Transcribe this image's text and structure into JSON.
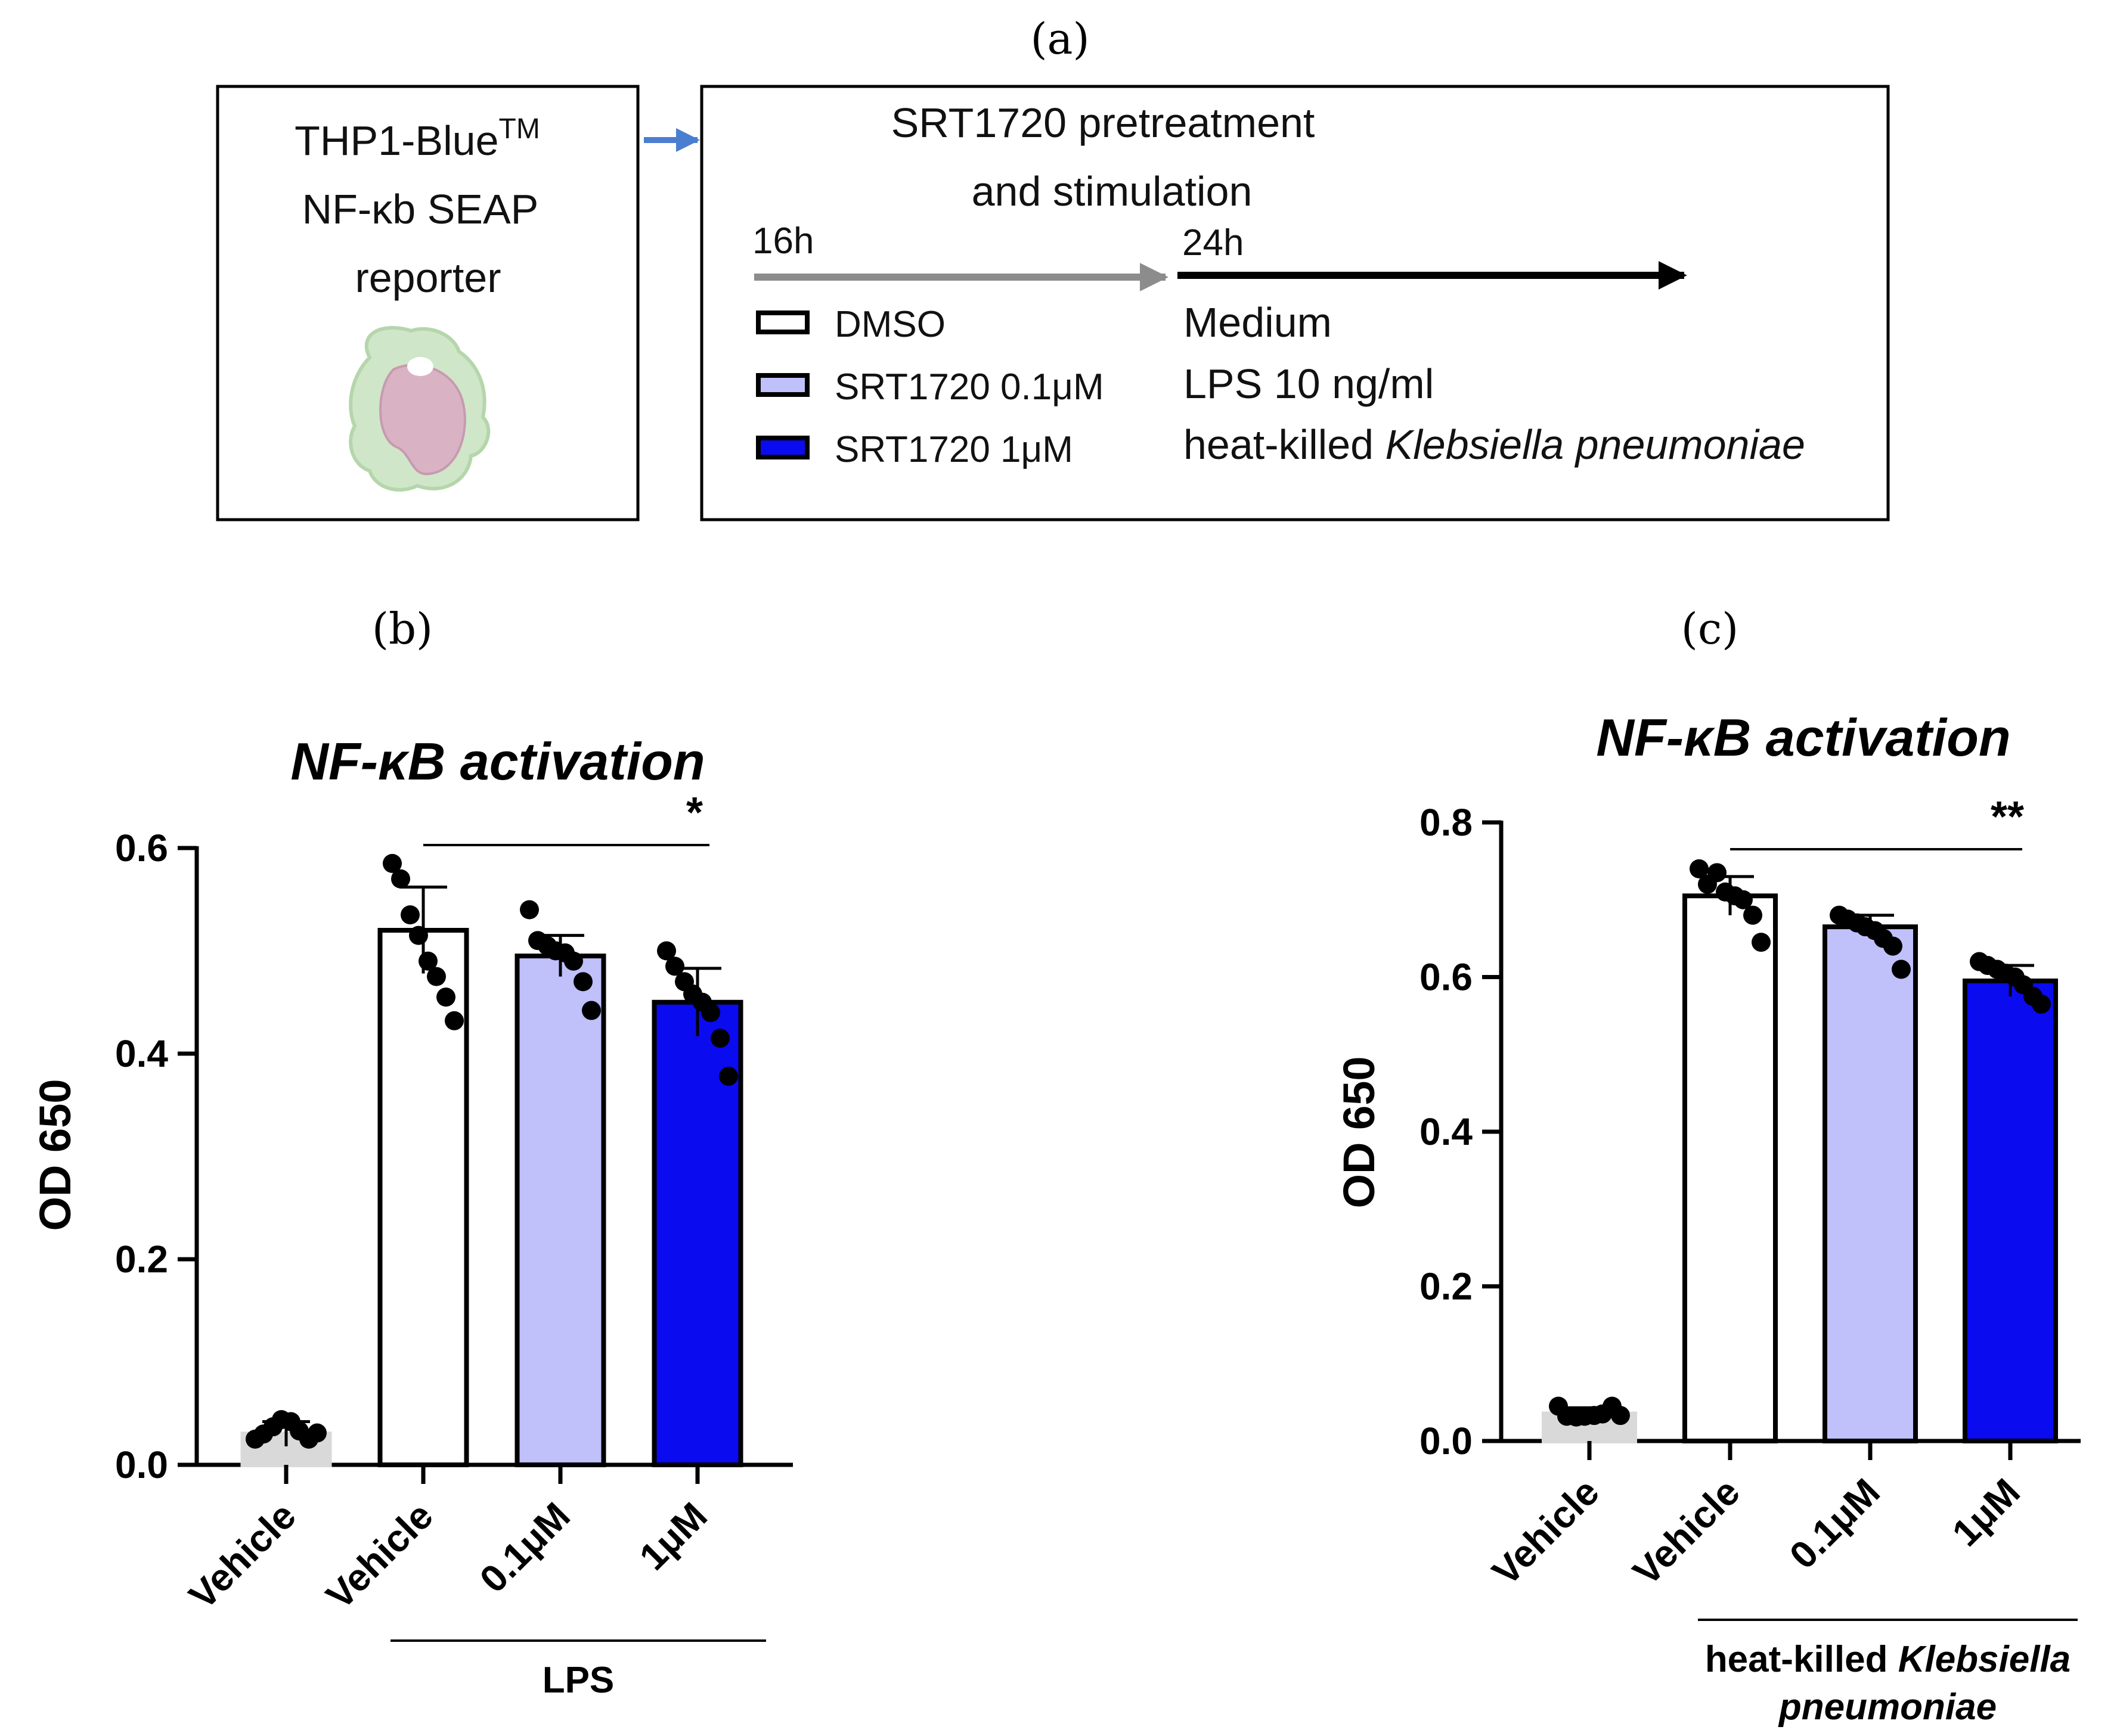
{
  "panel_labels": {
    "a": "(a)",
    "b": "(b)",
    "c": "(c)"
  },
  "schema": {
    "cell_box": {
      "line1": "THP1-Blue",
      "superscript": "TM",
      "line2": "NF-κb SEAP",
      "line3": "reporter"
    },
    "protocol_title_line1": "SRT1720 pretreatment",
    "protocol_title_line2": "and stimulation",
    "time1": "16h",
    "time2": "24h",
    "pretreatments": [
      {
        "label": "DMSO",
        "color": "#ffffff"
      },
      {
        "label": "SRT1720 0.1μM",
        "color": "#c0c0fb"
      },
      {
        "label": "SRT1720 1μM",
        "color": "#0b0bf0"
      }
    ],
    "stimulations": [
      "Medium",
      "LPS 10 ng/ml"
    ],
    "stim_third_prefix": "heat-killed ",
    "stim_third_italic": "Klebsiella pneumoniae"
  },
  "colors": {
    "vehicle": "#d9d9d9",
    "dmso": "#ffffff",
    "low": "#c0c0fb",
    "high": "#0b0bf0",
    "arrow_blue": "#4a7ed0",
    "arrow_gray": "#8c8c8c",
    "cell_outer": "#cfe6c8",
    "cell_nucleus": "#d9b3c4"
  },
  "chart_data": [
    {
      "type": "bar",
      "panel": "b",
      "title": "NF-κB activation",
      "ylabel": "OD 650",
      "ylim": [
        0,
        0.6
      ],
      "yticks": [
        "0.0",
        "0.2",
        "0.4",
        "0.6"
      ],
      "categories": [
        "Vehicle",
        "Vehicle",
        "0.1μM",
        "1μM"
      ],
      "values": [
        0.03,
        0.52,
        0.495,
        0.45
      ],
      "errors": [
        0.012,
        0.042,
        0.02,
        0.033
      ],
      "points": [
        [
          0.025,
          0.03,
          0.037,
          0.044,
          0.042,
          0.033,
          0.025,
          0.031
        ],
        [
          0.585,
          0.57,
          0.535,
          0.515,
          0.49,
          0.475,
          0.455,
          0.432
        ],
        [
          0.54,
          0.51,
          0.505,
          0.5,
          0.498,
          0.49,
          0.47,
          0.442
        ],
        [
          0.5,
          0.485,
          0.47,
          0.458,
          0.45,
          0.44,
          0.415,
          0.378
        ]
      ],
      "fills": [
        "vehicle",
        "dmso",
        "low",
        "high"
      ],
      "group": {
        "label": "LPS",
        "from": 1,
        "to": 3
      },
      "significance": {
        "from": 1,
        "to": 3,
        "label": "*"
      }
    },
    {
      "type": "bar",
      "panel": "c",
      "title": "NF-κB activation",
      "ylabel": "OD 650",
      "ylim": [
        0,
        0.8
      ],
      "yticks": [
        "0.0",
        "0.2",
        "0.4",
        "0.6",
        "0.8"
      ],
      "categories": [
        "Vehicle",
        "Vehicle",
        "0.1μM",
        "1μM"
      ],
      "values": [
        0.035,
        0.705,
        0.665,
        0.595
      ],
      "errors": [
        0.008,
        0.025,
        0.015,
        0.02
      ],
      "points": [
        [
          0.045,
          0.032,
          0.031,
          0.032,
          0.033,
          0.035,
          0.045,
          0.033
        ],
        [
          0.74,
          0.72,
          0.735,
          0.71,
          0.705,
          0.7,
          0.68,
          0.645
        ],
        [
          0.68,
          0.675,
          0.67,
          0.665,
          0.66,
          0.65,
          0.64,
          0.61
        ],
        [
          0.62,
          0.615,
          0.61,
          0.605,
          0.6,
          0.59,
          0.575,
          0.565
        ]
      ],
      "fills": [
        "vehicle",
        "dmso",
        "low",
        "high"
      ],
      "group": {
        "label_line1_prefix": "heat-killed ",
        "label_line1_italic": "Klebsiella",
        "label_line2": "pneumoniae",
        "from": 1,
        "to": 3
      },
      "significance": {
        "from": 1,
        "to": 3,
        "label": "**"
      }
    }
  ]
}
